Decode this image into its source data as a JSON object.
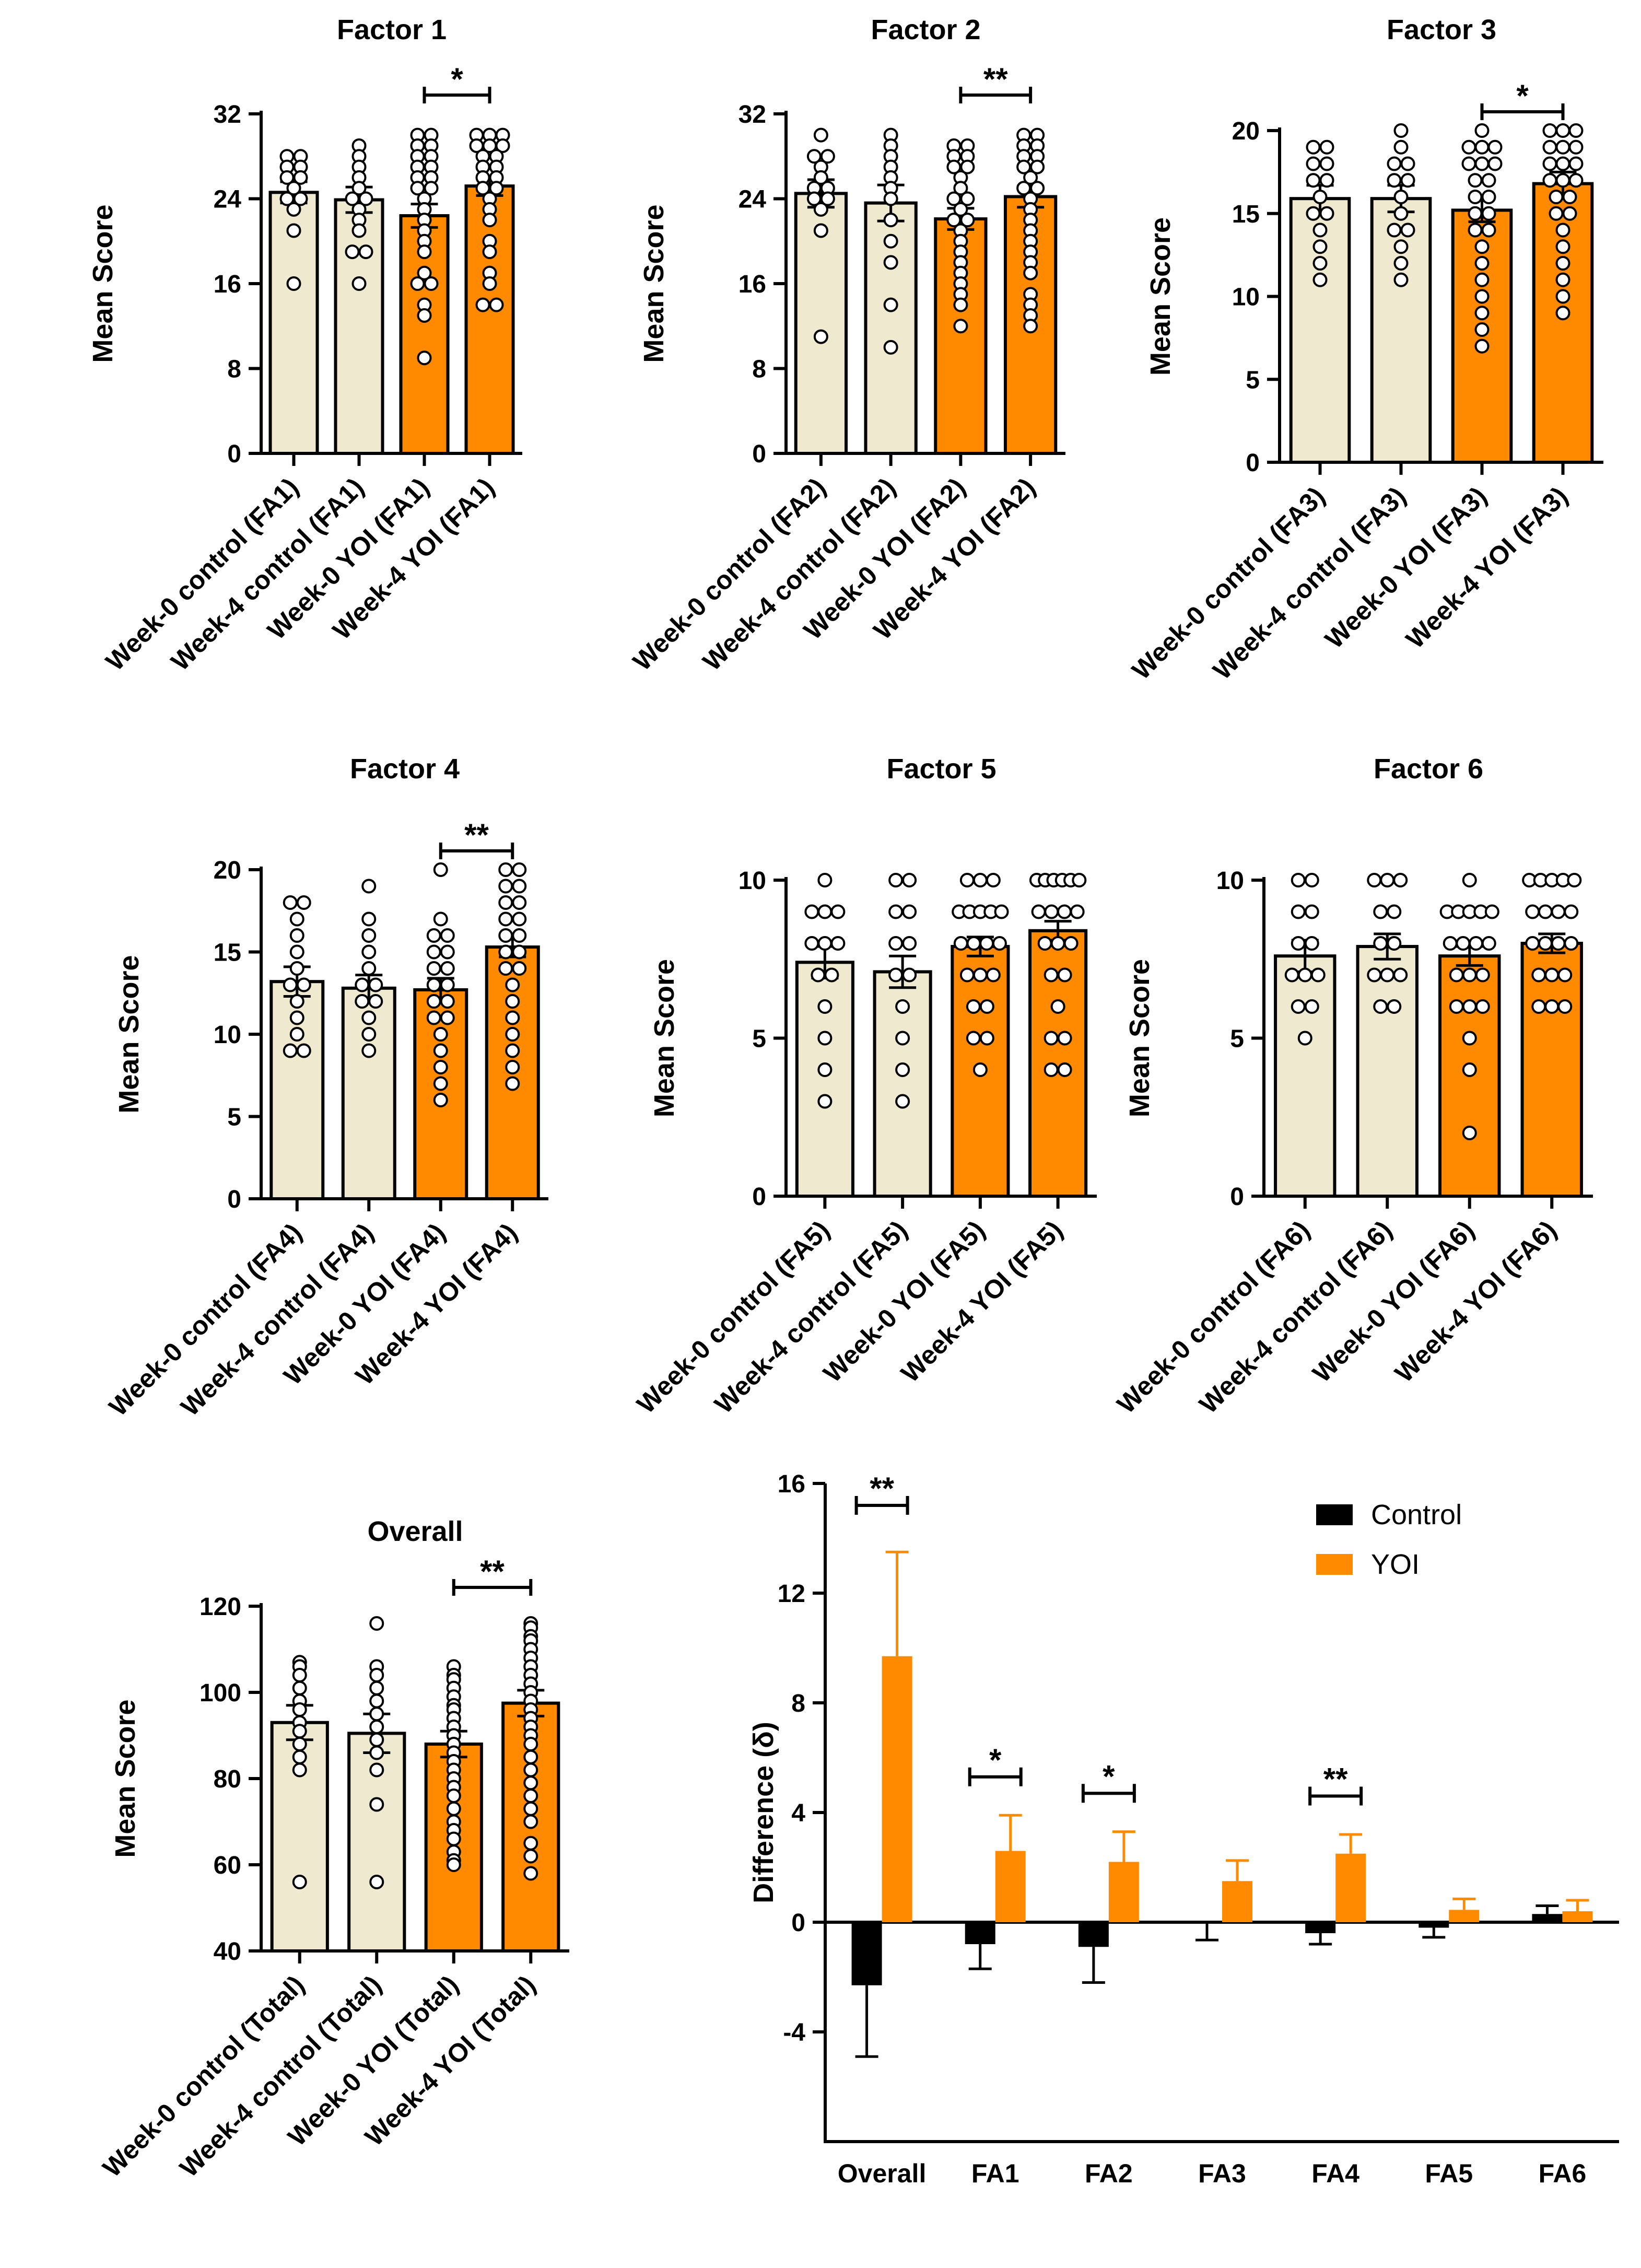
{
  "chart_data": [
    {
      "id": "factor1",
      "type": "bar",
      "title": "Factor 1",
      "ylabel": "Mean Score",
      "ylim": [
        0,
        32
      ],
      "yticks": [
        0,
        8,
        16,
        24,
        32
      ],
      "categories": [
        "Week-0 control (FA1)",
        "Week-4 control (FA1)",
        "Week-0 YOI (FA1)",
        "Week-4 YOI (FA1)"
      ],
      "values": [
        24.6,
        23.9,
        22.4,
        25.2
      ],
      "errors": [
        1.0,
        1.2,
        1.1,
        0.9
      ],
      "colors": [
        "#efe9cf",
        "#efe9cf",
        "#ff8a00",
        "#ff8a00"
      ],
      "points": [
        [
          28,
          27,
          28,
          27,
          26,
          26,
          25,
          24,
          24,
          23,
          21,
          16
        ],
        [
          29,
          28,
          27,
          26,
          25,
          24,
          24,
          23,
          22,
          21,
          19,
          19,
          16
        ],
        [
          30,
          30,
          29,
          29,
          28,
          28,
          27,
          27,
          26,
          26,
          25,
          25,
          24,
          23,
          22,
          21,
          20,
          19,
          17,
          16,
          16,
          14,
          13,
          9
        ],
        [
          30,
          30,
          30,
          29,
          29,
          29,
          28,
          28,
          27,
          27,
          26,
          26,
          25,
          25,
          24,
          23,
          22,
          20,
          19,
          17,
          16,
          14,
          14
        ]
      ],
      "significance": [
        {
          "from": 2,
          "to": 3,
          "label": "*"
        }
      ]
    },
    {
      "id": "factor2",
      "type": "bar",
      "title": "Factor 2",
      "ylabel": "Mean Score",
      "ylim": [
        0,
        32
      ],
      "yticks": [
        0,
        8,
        16,
        24,
        32
      ],
      "categories": [
        "Week-0 control (FA2)",
        "Week-4 control (FA2)",
        "Week-0 YOI (FA2)",
        "Week-4 YOI (FA2)"
      ],
      "values": [
        24.5,
        23.6,
        22.1,
        24.2
      ],
      "errors": [
        1.3,
        1.7,
        1.0,
        1.0
      ],
      "colors": [
        "#efe9cf",
        "#efe9cf",
        "#ff8a00",
        "#ff8a00"
      ],
      "points": [
        [
          30,
          28,
          28,
          27,
          26,
          25,
          25,
          24,
          24,
          23,
          21,
          11
        ],
        [
          30,
          29,
          28,
          27,
          26,
          25,
          24,
          22,
          20,
          18,
          14,
          10
        ],
        [
          29,
          29,
          28,
          28,
          27,
          27,
          26,
          25,
          24,
          24,
          23,
          22,
          22,
          21,
          20,
          19,
          18,
          17,
          16,
          15,
          14,
          12
        ],
        [
          30,
          30,
          29,
          29,
          28,
          28,
          27,
          27,
          26,
          25,
          25,
          24,
          23,
          22,
          21,
          20,
          19,
          18,
          17,
          15,
          14,
          13,
          12
        ]
      ],
      "significance": [
        {
          "from": 2,
          "to": 3,
          "label": "**"
        }
      ]
    },
    {
      "id": "factor3",
      "type": "bar",
      "title": "Factor 3",
      "ylabel": "Mean Score",
      "ylim": [
        0,
        20
      ],
      "yticks": [
        0,
        5,
        10,
        15,
        20
      ],
      "categories": [
        "Week-0 control (FA3)",
        "Week-4 control (FA3)",
        "Week-0 YOI (FA3)",
        "Week-4 YOI (FA3)"
      ],
      "values": [
        15.9,
        15.9,
        15.2,
        16.8
      ],
      "errors": [
        0.8,
        0.8,
        0.7,
        0.7
      ],
      "colors": [
        "#efe9cf",
        "#efe9cf",
        "#ff8a00",
        "#ff8a00"
      ],
      "points": [
        [
          19,
          19,
          18,
          18,
          17,
          17,
          16,
          15,
          15,
          14,
          13,
          12,
          11
        ],
        [
          20,
          19,
          18,
          18,
          17,
          17,
          16,
          15,
          14,
          14,
          13,
          12,
          11
        ],
        [
          20,
          19,
          19,
          19,
          18,
          18,
          18,
          17,
          17,
          16,
          16,
          15,
          15,
          14,
          14,
          13,
          12,
          11,
          10,
          9,
          8,
          7
        ],
        [
          20,
          20,
          20,
          19,
          19,
          19,
          18,
          18,
          18,
          17,
          17,
          17,
          16,
          16,
          15,
          15,
          14,
          13,
          12,
          11,
          10,
          9
        ]
      ],
      "significance": [
        {
          "from": 2,
          "to": 3,
          "label": "*"
        }
      ]
    },
    {
      "id": "factor4",
      "type": "bar",
      "title": "Factor 4",
      "ylabel": "Mean Score",
      "ylim": [
        0,
        20
      ],
      "yticks": [
        0,
        5,
        10,
        15,
        20
      ],
      "categories": [
        "Week-0 control (FA4)",
        "Week-4 control (FA4)",
        "Week-0 YOI (FA4)",
        "Week-4 YOI (FA4)"
      ],
      "values": [
        13.2,
        12.8,
        12.7,
        15.3
      ],
      "errors": [
        0.9,
        0.8,
        0.7,
        0.6
      ],
      "colors": [
        "#efe9cf",
        "#efe9cf",
        "#ff8a00",
        "#ff8a00"
      ],
      "points": [
        [
          18,
          18,
          17,
          16,
          15,
          14,
          13,
          13,
          12,
          11,
          10,
          9,
          9
        ],
        [
          19,
          17,
          16,
          15,
          14,
          13,
          13,
          12,
          12,
          11,
          10,
          9
        ],
        [
          20,
          17,
          16,
          16,
          15,
          15,
          14,
          14,
          13,
          13,
          12,
          12,
          11,
          11,
          10,
          9,
          8,
          7,
          6
        ],
        [
          20,
          20,
          19,
          19,
          18,
          18,
          17,
          17,
          16,
          16,
          15,
          15,
          14,
          14,
          13,
          12,
          11,
          10,
          9,
          8,
          7
        ]
      ],
      "significance": [
        {
          "from": 2,
          "to": 3,
          "label": "**"
        }
      ]
    },
    {
      "id": "factor5",
      "type": "bar",
      "title": "Factor 5",
      "ylabel": "Mean Score",
      "ylim": [
        0,
        10
      ],
      "yticks": [
        0,
        5,
        10
      ],
      "categories": [
        "Week-0 control (FA5)",
        "Week-4 control (FA5)",
        "Week-0 YOI (FA5)",
        "Week-4 YOI (FA5)"
      ],
      "values": [
        7.4,
        7.1,
        7.9,
        8.4
      ],
      "errors": [
        0.5,
        0.5,
        0.3,
        0.3
      ],
      "colors": [
        "#efe9cf",
        "#efe9cf",
        "#ff8a00",
        "#ff8a00"
      ],
      "points": [
        [
          10,
          9,
          9,
          9,
          8,
          8,
          8,
          7,
          7,
          6,
          5,
          4,
          3
        ],
        [
          10,
          10,
          9,
          9,
          8,
          8,
          7,
          7,
          6,
          5,
          4,
          3
        ],
        [
          10,
          10,
          10,
          9,
          9,
          9,
          9,
          9,
          8,
          8,
          8,
          8,
          7,
          7,
          7,
          6,
          6,
          5,
          5,
          4
        ],
        [
          10,
          10,
          10,
          10,
          10,
          10,
          9,
          9,
          9,
          9,
          8,
          8,
          8,
          7,
          7,
          6,
          5,
          5,
          4,
          4
        ]
      ],
      "significance": []
    },
    {
      "id": "factor6",
      "type": "bar",
      "title": "Factor 6",
      "ylabel": "Mean Score",
      "ylim": [
        0,
        10
      ],
      "yticks": [
        0,
        5,
        10
      ],
      "categories": [
        "Week-0 control (FA6)",
        "Week-4 control (FA6)",
        "Week-0 YOI (FA6)",
        "Week-4 YOI (FA6)"
      ],
      "values": [
        7.6,
        7.9,
        7.6,
        8.0
      ],
      "errors": [
        0.5,
        0.4,
        0.3,
        0.3
      ],
      "colors": [
        "#efe9cf",
        "#efe9cf",
        "#ff8a00",
        "#ff8a00"
      ],
      "points": [
        [
          10,
          10,
          9,
          9,
          8,
          8,
          7,
          7,
          7,
          6,
          6,
          5
        ],
        [
          10,
          10,
          10,
          9,
          9,
          8,
          8,
          7,
          7,
          7,
          6,
          6
        ],
        [
          10,
          9,
          9,
          9,
          9,
          9,
          8,
          8,
          8,
          8,
          7,
          7,
          7,
          6,
          6,
          6,
          5,
          4,
          2
        ],
        [
          10,
          10,
          10,
          10,
          10,
          9,
          9,
          9,
          9,
          8,
          8,
          8,
          8,
          7,
          7,
          7,
          6,
          6,
          6
        ]
      ],
      "significance": []
    },
    {
      "id": "overall",
      "type": "bar",
      "title": "Overall",
      "ylabel": "Mean Score",
      "ylim": [
        40,
        120
      ],
      "yticks": [
        40,
        60,
        80,
        100,
        120
      ],
      "categories": [
        "Week-0 control (Total)",
        "Week-4 control (Total)",
        "Week-0 YOI (Total)",
        "Week-4 YOI (Total)"
      ],
      "values": [
        93,
        90.5,
        88,
        97.5
      ],
      "errors": [
        4,
        4.5,
        3,
        3
      ],
      "colors": [
        "#efe9cf",
        "#efe9cf",
        "#ff8a00",
        "#ff8a00"
      ],
      "points": [
        [
          107,
          106,
          104,
          101,
          98,
          96,
          93,
          91,
          88,
          85,
          82,
          56
        ],
        [
          116,
          106,
          104,
          101,
          98,
          95,
          92,
          89,
          86,
          82,
          74,
          56
        ],
        [
          106,
          104,
          103,
          101,
          99,
          97,
          96,
          94,
          92,
          90,
          88,
          86,
          84,
          82,
          80,
          78,
          76,
          73,
          70,
          68,
          66,
          63,
          61,
          60
        ],
        [
          116,
          115,
          113,
          112,
          110,
          108,
          106,
          104,
          102,
          100,
          98,
          96,
          94,
          92,
          90,
          88,
          85,
          82,
          79,
          76,
          73,
          70,
          65,
          62,
          58
        ]
      ],
      "significance": [
        {
          "from": 2,
          "to": 3,
          "label": "**"
        }
      ]
    },
    {
      "id": "difference",
      "type": "bar",
      "title": "",
      "ylabel": "Difference (δ)",
      "ylim": [
        -8,
        16
      ],
      "yticks": [
        -4,
        0,
        4,
        8,
        12,
        16
      ],
      "categories": [
        "Overall",
        "FA1",
        "FA2",
        "FA3",
        "FA4",
        "FA5",
        "FA6"
      ],
      "series": [
        {
          "name": "Control",
          "color": "#000000",
          "values": [
            -2.3,
            -0.8,
            -0.9,
            -0.05,
            -0.4,
            -0.2,
            0.3
          ],
          "errors": [
            2.6,
            0.9,
            1.3,
            0.6,
            0.4,
            0.35,
            0.3
          ]
        },
        {
          "name": "YOI",
          "color": "#ff8a00",
          "values": [
            9.7,
            2.6,
            2.2,
            1.5,
            2.5,
            0.45,
            0.4
          ],
          "errors": [
            3.8,
            1.3,
            1.1,
            0.75,
            0.7,
            0.4,
            0.4
          ]
        }
      ],
      "significance": [
        {
          "category": 0,
          "label": "**"
        },
        {
          "category": 1,
          "label": "*"
        },
        {
          "category": 2,
          "label": "*"
        },
        {
          "category": 4,
          "label": "**"
        }
      ],
      "legend": [
        "Control",
        "YOI"
      ],
      "legend_position": "top-right"
    }
  ]
}
